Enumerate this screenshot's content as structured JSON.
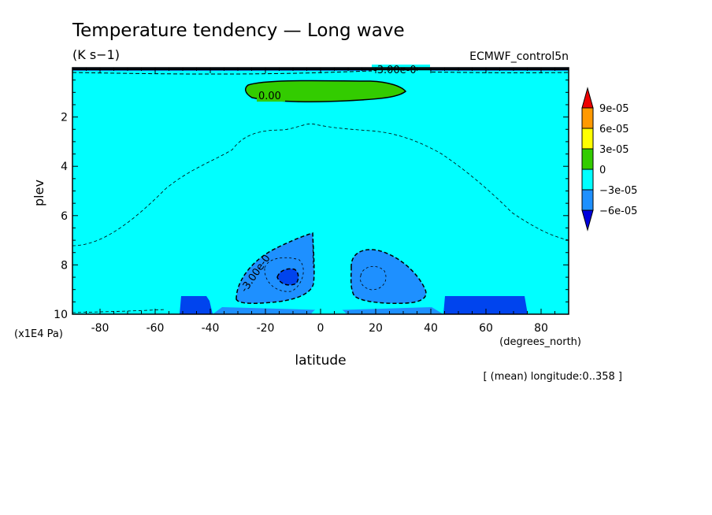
{
  "chart_data": {
    "type": "contour",
    "title": "Temperature tendency — Long wave",
    "units": "(K s−1)",
    "dataset": "ECMWF_control5n",
    "footer": "[ (mean) longitude:0..358 ]",
    "xlabel": "latitude",
    "xunits": "(degrees_north)",
    "ylabel": "plev",
    "yunits": "(x1E4 Pa)",
    "xlim": [
      -90,
      90
    ],
    "ylim": [
      10,
      0
    ],
    "x_ticks": [
      -80,
      -60,
      -40,
      -20,
      0,
      20,
      40,
      60,
      80
    ],
    "y_ticks": [
      2,
      4,
      6,
      8,
      10
    ],
    "colorbar": {
      "levels": [
        "9e-05",
        "6e-05",
        "3e-05",
        "0",
        "−3e-05",
        "−6e-05"
      ],
      "colors": [
        "#ee0000",
        "#ff9900",
        "#ffff00",
        "#33cc00",
        "#00ffff",
        "#1e90ff",
        "#0000dd"
      ]
    },
    "contour_labels": [
      "0.00",
      "-3.00e-0",
      "-3.00e-0"
    ]
  }
}
